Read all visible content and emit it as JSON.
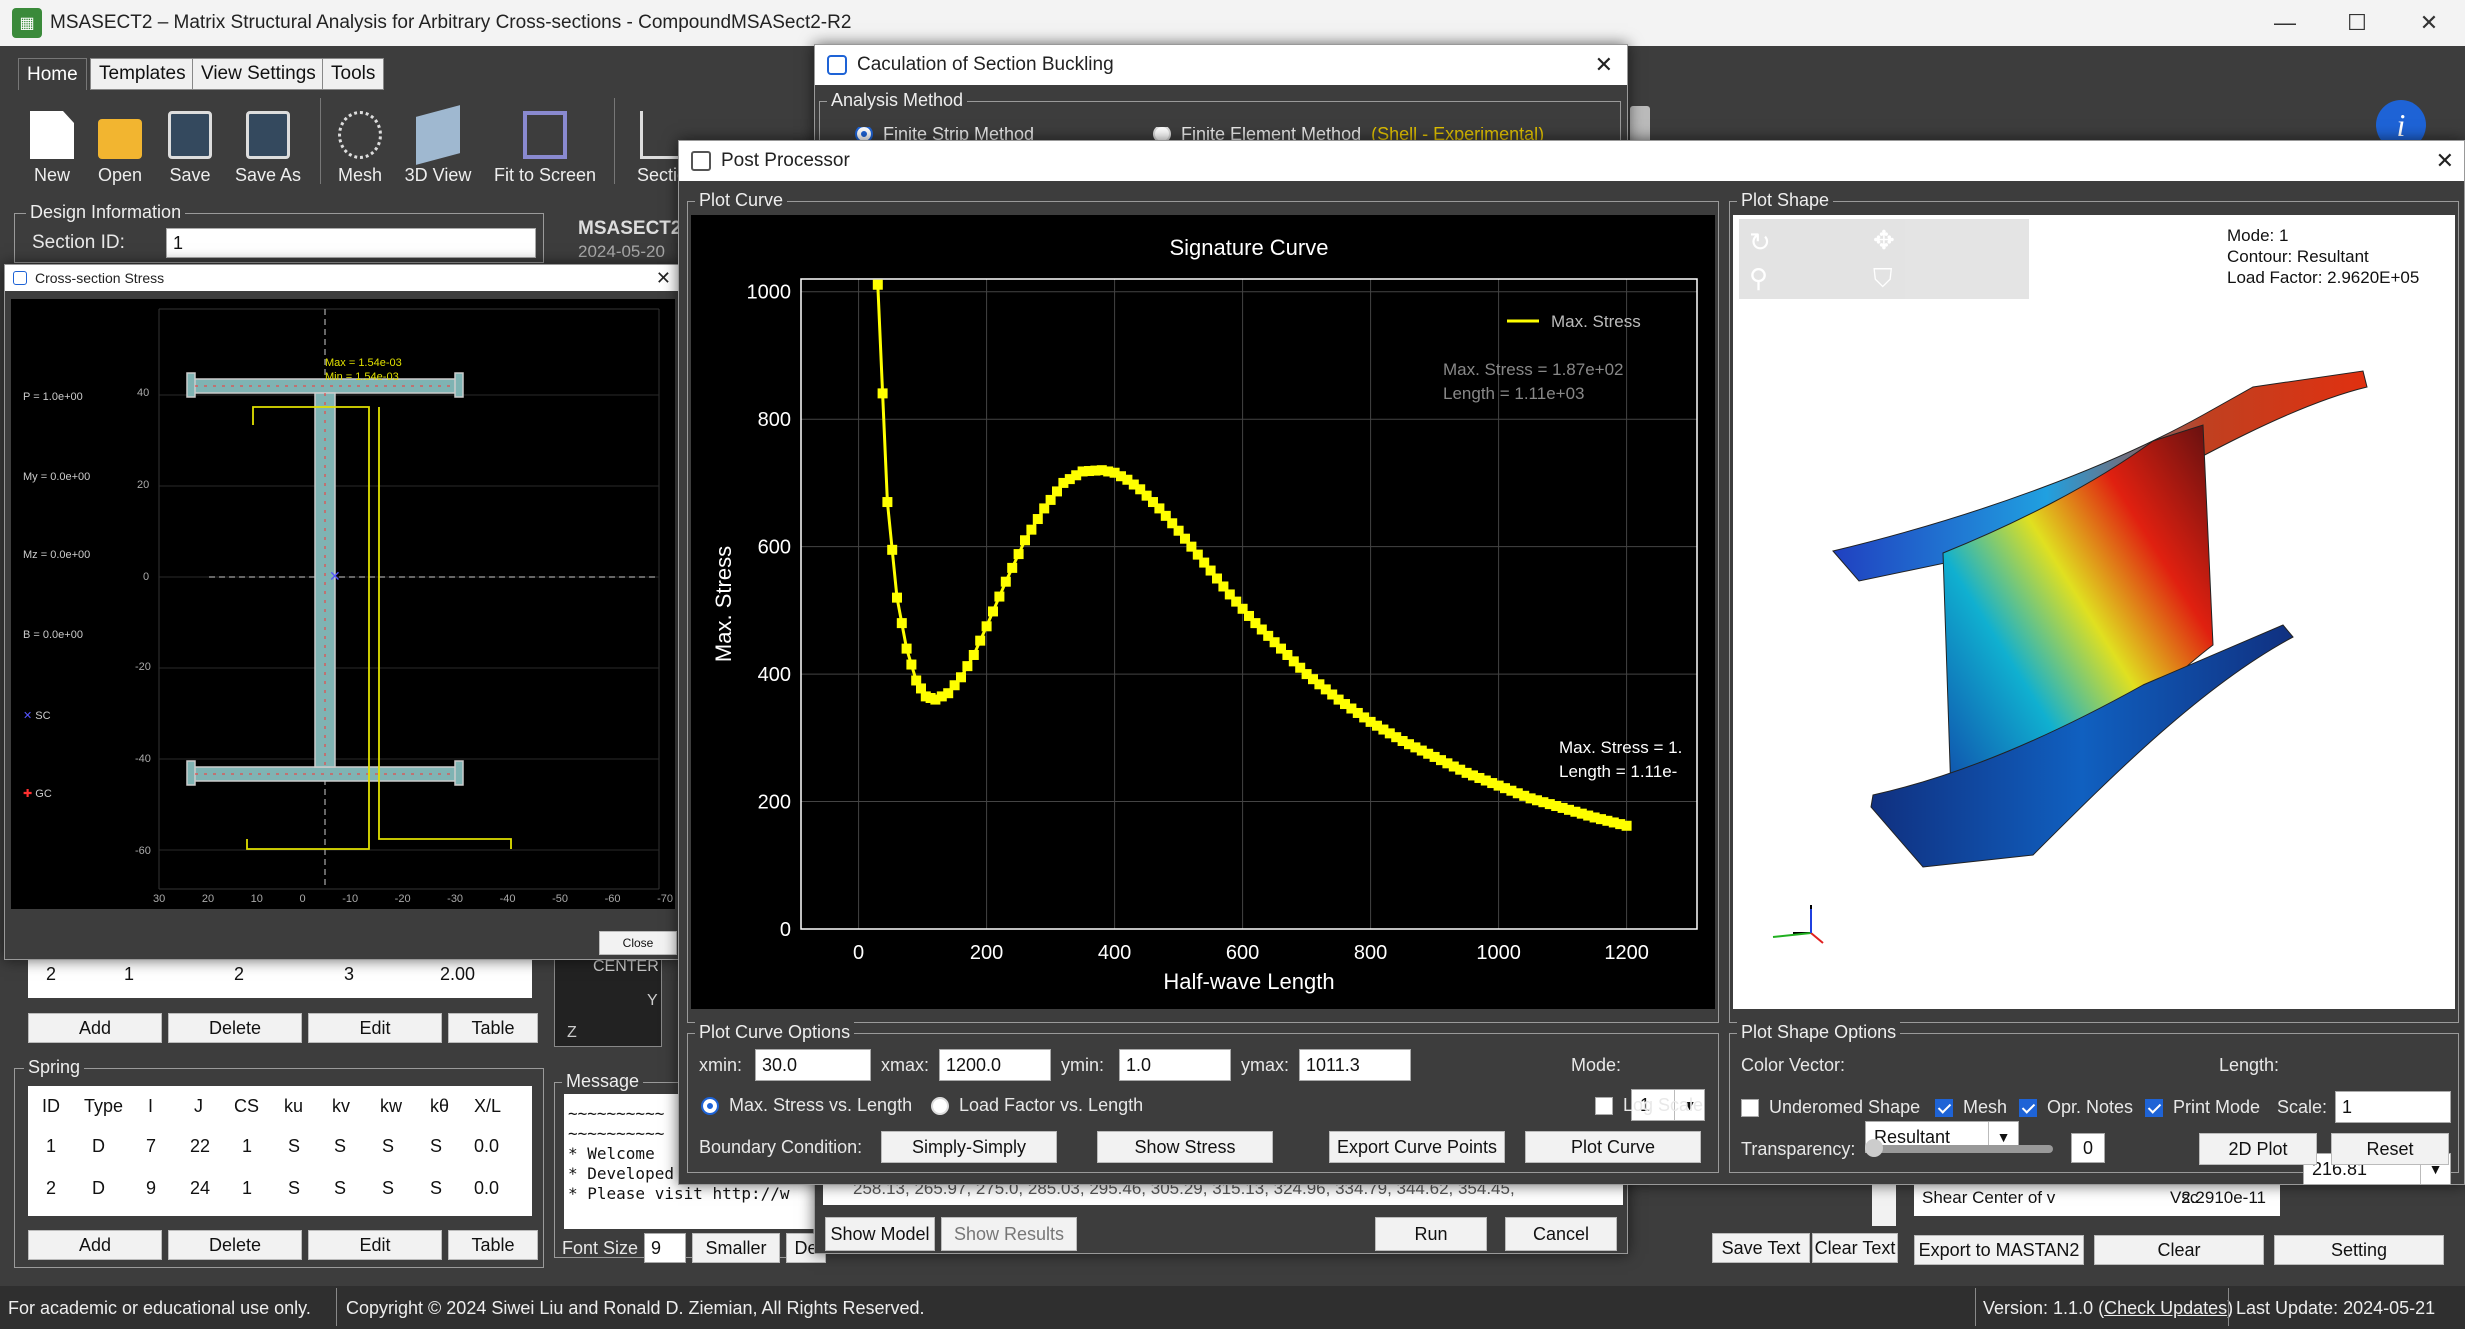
{
  "app": {
    "title": "MSASECT2 – Matrix Structural Analysis for Arbitrary Cross-sections - CompoundMSASect2-R2",
    "icon": "app-grid-icon"
  },
  "menu_tabs": [
    "Home",
    "Templates",
    "View Settings",
    "Tools"
  ],
  "toolbar": {
    "new": "New",
    "open": "Open",
    "save": "Save",
    "save_as": "Save As",
    "mesh": "Mesh",
    "view3d": "3D View",
    "fit": "Fit to Screen",
    "section": "Sectio"
  },
  "design": {
    "title": "Design Information",
    "section_id_label": "Section ID:",
    "section_id": "1",
    "brand": "MSASECT2",
    "date": "2024-05-20"
  },
  "stress_window": {
    "title": "Cross-section Stress",
    "close": "Close",
    "labels": [
      "P = 1.0e+00",
      "My = 0.0e+00",
      "Mz = 0.0e+00",
      "B = 0.0e+00",
      "SC",
      "GC"
    ],
    "max": "Max = 1.54e-03",
    "min": "Min = 1.54e-03",
    "yticks": [
      "40",
      "20",
      "0",
      "-20",
      "-40",
      "-60"
    ],
    "xticks": [
      "30",
      "20",
      "10",
      "0",
      "-10",
      "-20",
      "-30",
      "-40",
      "-50",
      "-60",
      "-70"
    ]
  },
  "connect_row": [
    "2",
    "1",
    "2",
    "3",
    "2.00"
  ],
  "buttons": {
    "add": "Add",
    "delete": "Delete",
    "edit": "Edit",
    "table": "Table"
  },
  "spring": {
    "title": "Spring",
    "headers": [
      "ID",
      "Type",
      "I",
      "J",
      "CS",
      "ku",
      "kv",
      "kw",
      "kθ",
      "X/L"
    ],
    "rows": [
      [
        "1",
        "D",
        "7",
        "22",
        "1",
        "S",
        "S",
        "S",
        "S",
        "0.0"
      ],
      [
        "2",
        "D",
        "9",
        "24",
        "1",
        "S",
        "S",
        "S",
        "S",
        "0.0"
      ]
    ]
  },
  "center": {
    "label": "CENTER",
    "y": "Y",
    "z": "Z"
  },
  "message": {
    "title": "Message",
    "lines": [
      "~~~~~~~~~~",
      "~~~~~~~~~~",
      "* Welcome",
      "* Developed by: Siwei L",
      "* Please visit http://w"
    ],
    "font_size_label": "Font Size",
    "font_size": "9",
    "smaller": "Smaller",
    "de": "De"
  },
  "buckling": {
    "title": "Caculation of Section Buckling",
    "analysis_method": "Analysis Method",
    "fsm": "Finite Strip Method",
    "fem": "Finite Element Method",
    "fem_note": "(Shell - Experimental)",
    "numbers": "258.13, 265.97, 275.0, 285.03, 295.46, 305.29, 315.13, 324.96, 334.79, 344.62, 354.45,",
    "show_model": "Show Model",
    "show_results": "Show Results",
    "run": "Run",
    "cancel": "Cancel"
  },
  "post": {
    "title": "Post Processor",
    "plot_curve": "Plot Curve",
    "plot_shape": "Plot Shape",
    "mode_info": [
      "Mode: 1",
      "Contour: Resultant",
      "Load Factor: 2.9620E+05"
    ],
    "curve_options": {
      "title": "Plot Curve Options",
      "xmin_label": "xmin:",
      "xmin": "30.0",
      "xmax_label": "xmax:",
      "xmax": "1200.0",
      "ymin_label": "ymin:",
      "ymin": "1.0",
      "ymax_label": "ymax:",
      "ymax": "1011.3",
      "mode_label": "Mode:",
      "mode": "1",
      "r1": "Max. Stress vs. Length",
      "r2": "Load Factor vs. Length",
      "log": "Log Scale",
      "bc_label": "Boundary Condition:",
      "bc": "Simply-Simply",
      "show_stress": "Show Stress",
      "export": "Export Curve Points",
      "plot": "Plot Curve"
    },
    "shape_options": {
      "title": "Plot Shape Options",
      "color_label": "Color Vector:",
      "color": "Resultant",
      "length_label": "Length:",
      "length": "216.81",
      "undeformed": "Underomed Shape",
      "mesh": "Mesh",
      "opr": "Opr. Notes",
      "print": "Print Mode",
      "scale_label": "Scale:",
      "scale": "1",
      "transp_label": "Transparency:",
      "transp": "0",
      "plot2d": "2D Plot",
      "reset": "Reset"
    }
  },
  "chart_data": {
    "type": "line",
    "title": "Signature Curve",
    "xlabel": "Half-wave Length",
    "ylabel": "Max. Stress",
    "xlim": [
      -90,
      1310
    ],
    "ylim": [
      0,
      1020
    ],
    "xticks": [
      0,
      200,
      400,
      600,
      800,
      1000,
      1200
    ],
    "yticks": [
      0,
      200,
      400,
      600,
      800,
      1000
    ],
    "series": [
      {
        "name": "Max. Stress",
        "color": "#ffff00",
        "x": [
          30,
          45,
          60,
          75,
          90,
          105,
          120,
          140,
          160,
          180,
          200,
          230,
          260,
          290,
          320,
          350,
          380,
          400,
          420,
          440,
          470,
          500,
          540,
          580,
          620,
          660,
          700,
          750,
          800,
          850,
          900,
          950,
          1000,
          1050,
          1100,
          1150,
          1200
        ],
        "y": [
          1011,
          670,
          520,
          440,
          390,
          365,
          360,
          370,
          395,
          430,
          475,
          545,
          610,
          660,
          700,
          718,
          720,
          716,
          705,
          690,
          660,
          625,
          575,
          525,
          480,
          440,
          400,
          360,
          325,
          295,
          270,
          245,
          225,
          205,
          190,
          175,
          162
        ]
      }
    ],
    "annotations": [
      {
        "text": "Max. Stress = 1.87e+02"
      },
      {
        "text": "Length = 1.11e+03"
      },
      {
        "text": "Max. Stress = 1."
      },
      {
        "text": "Length = 1.11e-"
      }
    ]
  },
  "right_panel": {
    "row_label": "Shear Center of v",
    "sym": "Vsc",
    "value": "2.2910e-11",
    "export": "Export to MASTAN2",
    "clear": "Clear",
    "setting": "Setting",
    "save_text": "Save Text",
    "clear_text": "Clear Text"
  },
  "status": {
    "left": "For academic or educational use only.",
    "copyright": "Copyright © 2024 Siwei Liu and Ronald D. Ziemian, All Rights Reserved.",
    "version": "Version: 1.1.0 (",
    "check": "Check Updates",
    "version_end": ")",
    "update": "Last Update: 2024-05-21"
  }
}
